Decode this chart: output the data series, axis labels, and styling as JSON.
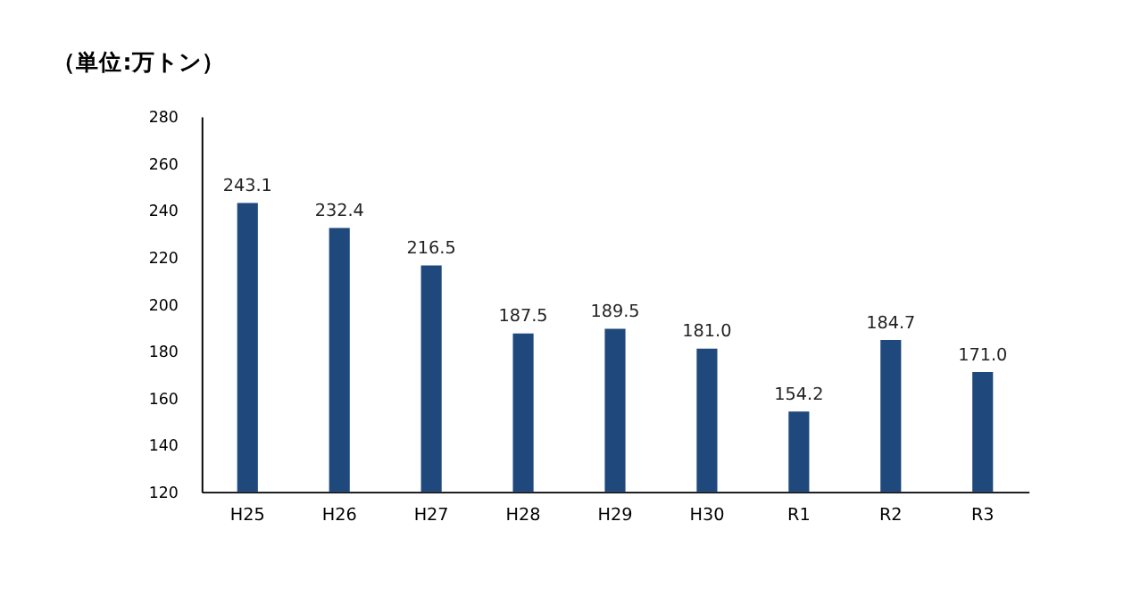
{
  "chart_data": {
    "type": "bar",
    "title": "（単位:万トン）",
    "categories": [
      "H25",
      "H26",
      "H27",
      "H28",
      "H29",
      "H30",
      "R1",
      "R2",
      "R3"
    ],
    "values": [
      243.1,
      232.4,
      216.5,
      187.5,
      189.5,
      181.0,
      154.2,
      184.7,
      171.0
    ],
    "value_labels": [
      "243.1",
      "232.4",
      "216.5",
      "187.5",
      "189.5",
      "181.0",
      "154.2",
      "184.7",
      "171.0"
    ],
    "color": "#1f497d",
    "ylim": [
      120,
      280
    ],
    "yticks": [
      120,
      140,
      160,
      180,
      200,
      220,
      240,
      260,
      280
    ],
    "grid": false
  }
}
